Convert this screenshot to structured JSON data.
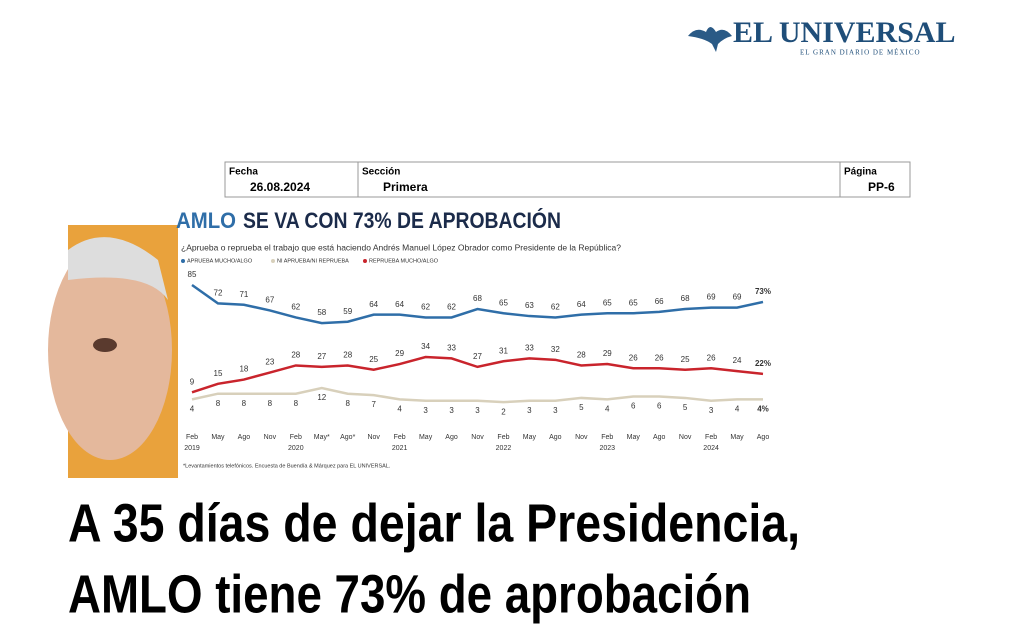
{
  "header": {
    "logo_title": "EL UNIVERSAL",
    "logo_subtitle": "EL GRAN DIARIO DE MÉXICO"
  },
  "clipping": {
    "date_label": "Fecha",
    "date": "26.08.2024",
    "section_label": "Sección",
    "section": "Primera",
    "page_label": "Página",
    "page": "PP-6"
  },
  "chart_data": {
    "type": "line",
    "title_highlight": "AMLO",
    "title": "SE VA CON 73% DE APROBACIÓN",
    "question": "¿Aprueba o reprueba el trabajo que está haciendo Andrés Manuel López Obrador como Presidente de la República?",
    "categories": [
      "Feb 2019",
      "May",
      "Ago",
      "Nov",
      "Feb 2020",
      "May*",
      "Ago*",
      "Nov",
      "Feb 2021",
      "May",
      "Ago",
      "Nov",
      "Feb 2022",
      "May",
      "Ago",
      "Nov",
      "Feb 2023",
      "May",
      "Ago",
      "Nov",
      "Feb 2024",
      "May",
      "Ago"
    ],
    "series": [
      {
        "name": "APRUEBA MUCHO/ALGO",
        "color": "#2f6ea8",
        "values": [
          85,
          72,
          71,
          67,
          62,
          58,
          59,
          64,
          64,
          62,
          62,
          68,
          65,
          63,
          62,
          64,
          65,
          65,
          66,
          68,
          69,
          69,
          73
        ],
        "value_labels": [
          null,
          null,
          null,
          null,
          null,
          null,
          null,
          null,
          null,
          null,
          null,
          null,
          null,
          null,
          null,
          null,
          null,
          null,
          null,
          null,
          null,
          null,
          "73%"
        ]
      },
      {
        "name": "NI APRUEBA/NI REPRUEBA",
        "color": "#d8d0bb",
        "values": [
          4,
          8,
          8,
          8,
          8,
          12,
          8,
          7,
          4,
          3,
          3,
          3,
          2,
          3,
          3,
          5,
          4,
          6,
          6,
          5,
          3,
          4,
          4
        ],
        "value_labels": [
          null,
          null,
          null,
          null,
          null,
          null,
          null,
          null,
          null,
          null,
          null,
          null,
          null,
          null,
          null,
          null,
          null,
          null,
          null,
          null,
          null,
          null,
          "4%"
        ]
      },
      {
        "name": "REPRUEBA MUCHO/ALGO",
        "color": "#c9242c",
        "values": [
          9,
          15,
          18,
          23,
          28,
          27,
          28,
          25,
          29,
          34,
          33,
          27,
          31,
          33,
          32,
          28,
          29,
          26,
          26,
          25,
          26,
          24,
          22
        ],
        "value_labels": [
          null,
          null,
          null,
          null,
          null,
          null,
          null,
          null,
          null,
          null,
          null,
          null,
          null,
          null,
          null,
          null,
          null,
          null,
          null,
          null,
          null,
          null,
          "22%"
        ]
      }
    ],
    "footnote": "*Levantamientos telefónicos. Encuesta de Buendía & Márquez para EL UNIVERSAL."
  },
  "headline": {
    "lines": [
      "A 35 días de dejar la Presidencia,",
      "AMLO tiene 73% de aprobación"
    ]
  }
}
